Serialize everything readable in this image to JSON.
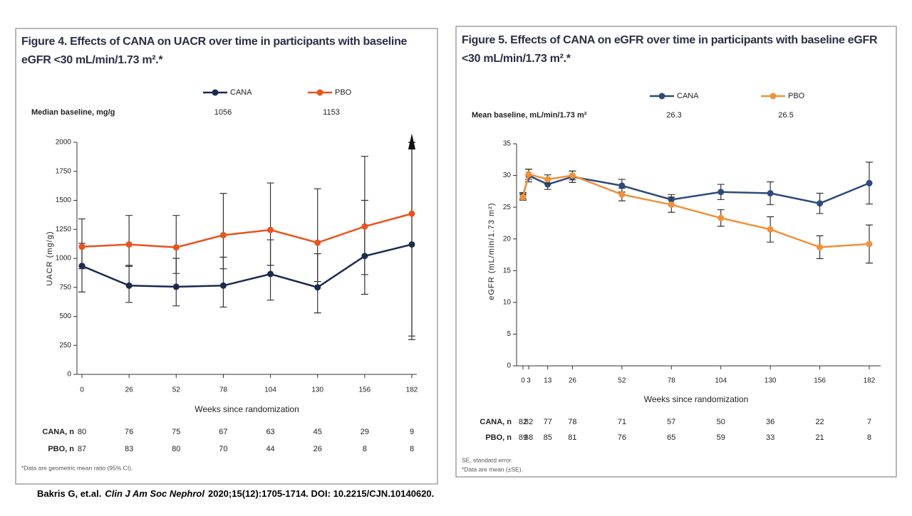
{
  "chart_data": [
    {
      "type": "line",
      "title": "Figure 4. Effects of CANA on UACR over time in participants with baseline eGFR <30 mL/min/1.73 m².*",
      "x_label": "Weeks since randomization",
      "y_label": "UACR (mg/g)",
      "x": [
        0,
        26,
        52,
        78,
        104,
        130,
        156,
        182
      ],
      "xlim": [
        0,
        182
      ],
      "ylim": [
        0,
        2000
      ],
      "yticks": [
        0,
        250,
        500,
        750,
        1000,
        1250,
        1500,
        1750,
        2000
      ],
      "series": [
        {
          "name": "CANA",
          "color": "#1b2a4e",
          "values": [
            935,
            765,
            755,
            765,
            865,
            750,
            1020,
            1120
          ],
          "lower": [
            710,
            620,
            590,
            580,
            640,
            530,
            690,
            300
          ],
          "upper": [
            1130,
            940,
            1000,
            1010,
            1160,
            1040,
            1500,
            2000
          ]
        },
        {
          "name": "PBO",
          "color": "#e8531e",
          "values": [
            1100,
            1120,
            1095,
            1200,
            1245,
            1135,
            1275,
            1385
          ],
          "lower": [
            910,
            930,
            870,
            910,
            940,
            800,
            860,
            330
          ],
          "upper": [
            1340,
            1370,
            1370,
            1560,
            1650,
            1600,
            1880,
            2000
          ]
        }
      ],
      "baseline": {
        "label": "Median baseline, mg/g",
        "values": [
          1056,
          1153
        ]
      },
      "n_rows": [
        {
          "label": "CANA, n",
          "values": [
            80,
            76,
            75,
            67,
            63,
            45,
            29,
            9
          ]
        },
        {
          "label": "PBO, n",
          "values": [
            87,
            83,
            80,
            70,
            44,
            26,
            8,
            8
          ]
        }
      ],
      "footnotes": [
        "*Data are geometric mean ratio (95% CI)."
      ]
    },
    {
      "type": "line",
      "title": "Figure 5. Effects of CANA on eGFR over time in participants with baseline eGFR <30 mL/min/1.73 m².*",
      "x_label": "Weeks since randomization",
      "y_label": "eGFR (mL/min/1.73 m²)",
      "x": [
        0,
        3,
        13,
        26,
        52,
        78,
        104,
        130,
        156,
        182
      ],
      "xlim": [
        0,
        182
      ],
      "ylim": [
        0,
        35
      ],
      "yticks": [
        0,
        5,
        10,
        15,
        20,
        25,
        30,
        35
      ],
      "series": [
        {
          "name": "CANA",
          "color": "#2e4a7d",
          "values": [
            26.8,
            30.0,
            28.6,
            29.8,
            28.4,
            26.2,
            27.4,
            27.2,
            25.6,
            28.8
          ],
          "error": [
            0.5,
            1.0,
            0.8,
            0.9,
            1.0,
            0.8,
            1.2,
            1.8,
            1.6,
            3.3
          ]
        },
        {
          "name": "PBO",
          "color": "#f0913a",
          "values": [
            26.6,
            30.2,
            29.4,
            30.0,
            27.0,
            25.4,
            23.3,
            21.5,
            18.7,
            19.2
          ],
          "error": [
            0.5,
            0.8,
            0.7,
            0.7,
            1.0,
            1.2,
            1.3,
            2.0,
            1.8,
            3.0
          ]
        }
      ],
      "baseline": {
        "label": "Mean baseline, mL/min/1.73 m²",
        "values": [
          26.3,
          26.5
        ]
      },
      "n_rows": [
        {
          "label": "CANA, n",
          "values": [
            82,
            82,
            77,
            78,
            71,
            57,
            50,
            36,
            22,
            7
          ]
        },
        {
          "label": "PBO, n",
          "values": [
            89,
            88,
            85,
            81,
            76,
            65,
            59,
            33,
            21,
            8
          ]
        }
      ],
      "footnotes": [
        "SE, standard error.",
        "*Data are mean (±SE)."
      ]
    }
  ],
  "citation": [
    "Bakris G, et.al.",
    "Clin J Am Soc Nephrol",
    "2020;15(12):1705-1714. DOI: 10.2215/CJN.10140620."
  ]
}
